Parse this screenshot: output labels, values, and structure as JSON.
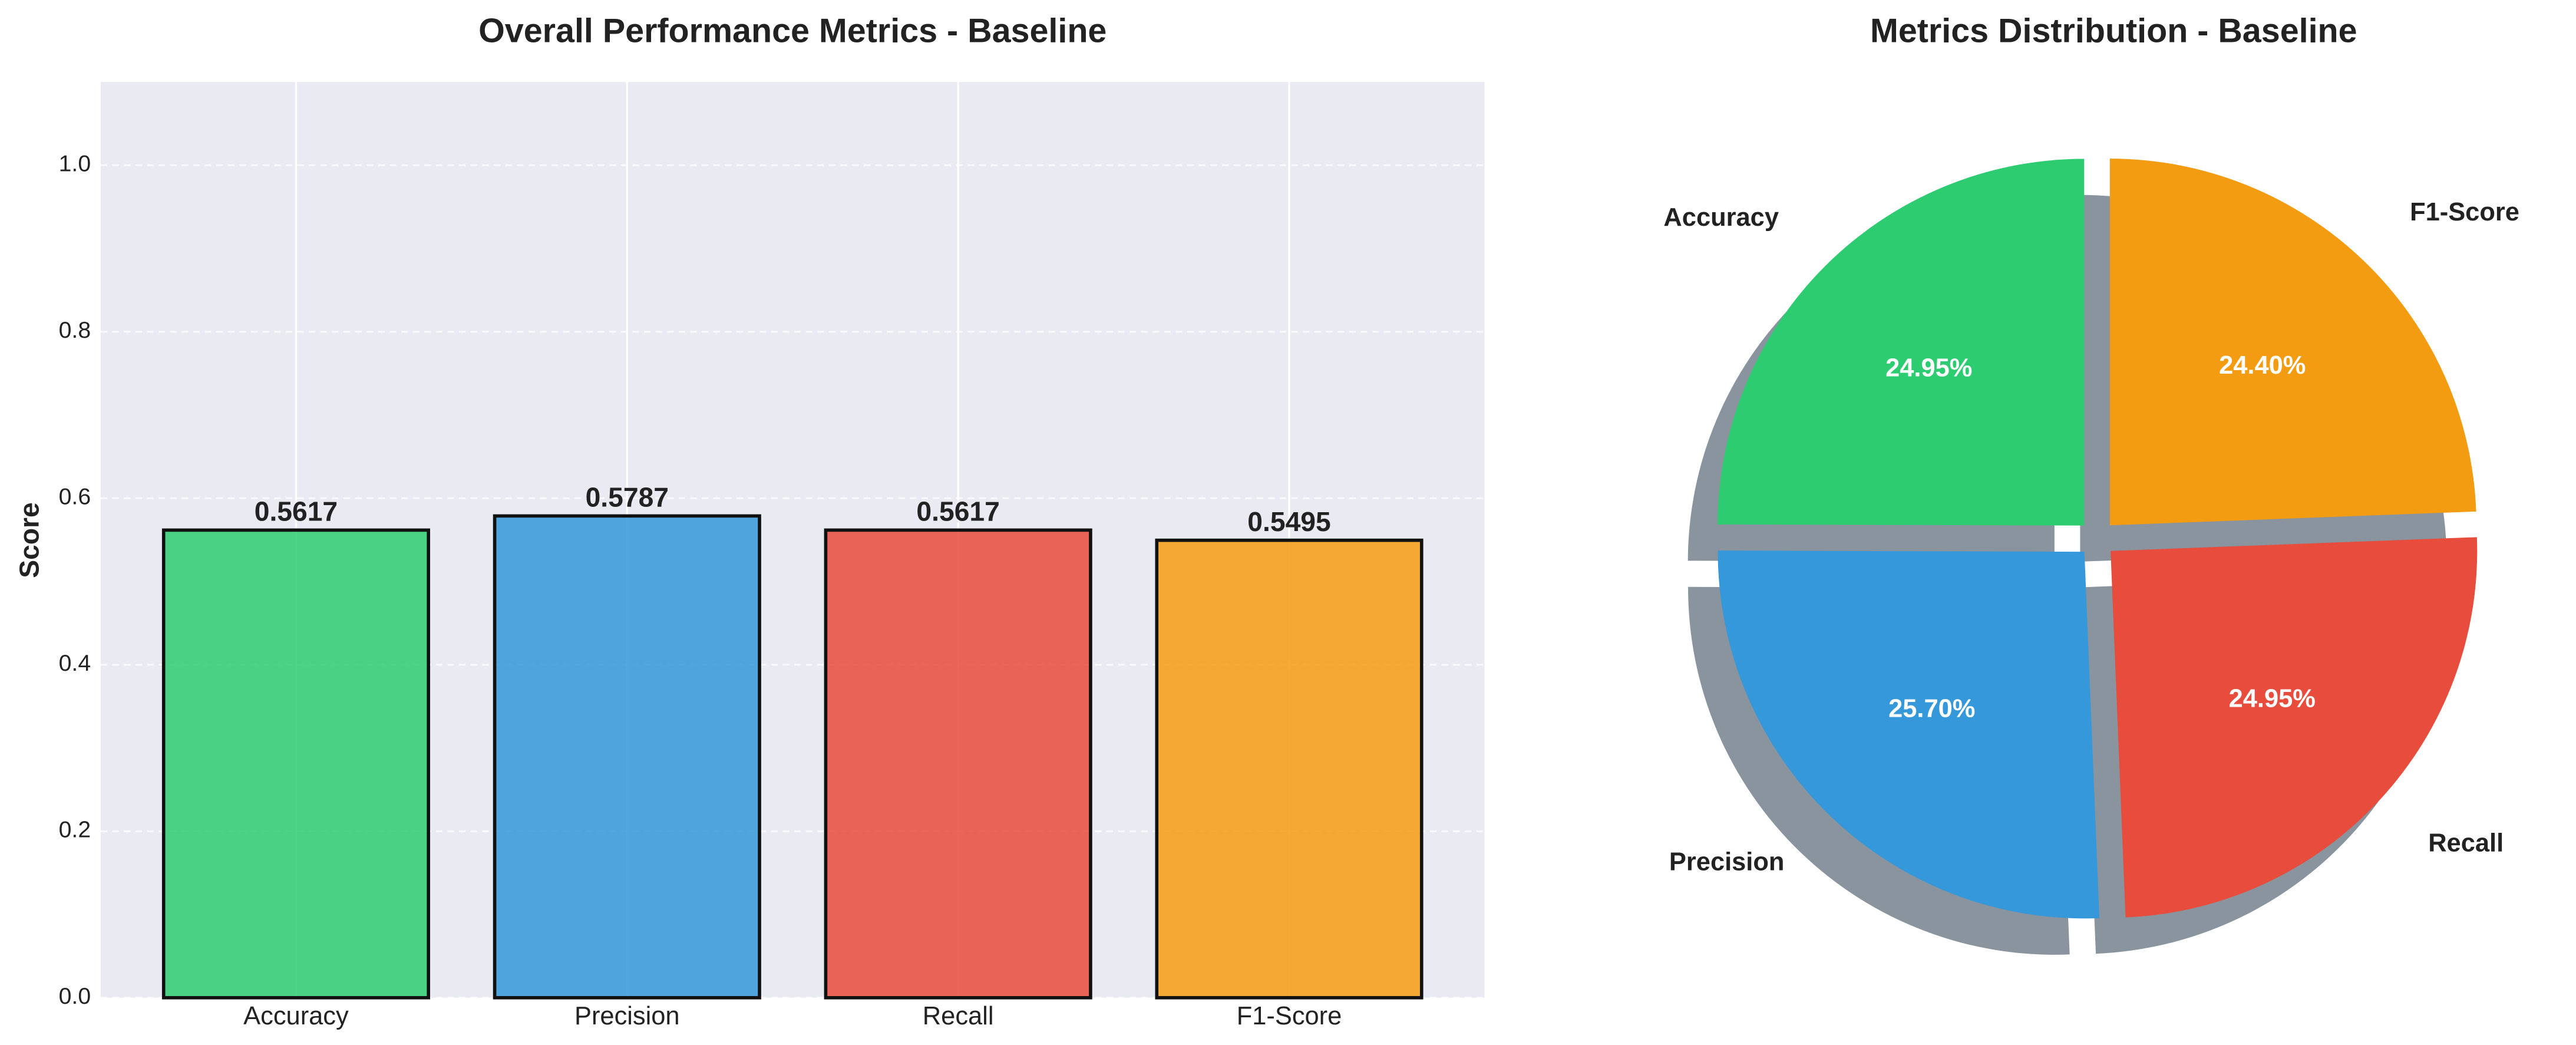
{
  "chart_data": [
    {
      "type": "bar",
      "title": "Overall Performance Metrics - Baseline",
      "y_label": "Score",
      "categories": [
        "Accuracy",
        "Precision",
        "Recall",
        "F1-Score"
      ],
      "values": [
        0.5617,
        0.5787,
        0.5617,
        0.5495
      ],
      "colors": [
        "#2ecc71",
        "#3498db",
        "#e74c3c",
        "#f39c12"
      ],
      "ylim": [
        0,
        1.1
      ],
      "yticks": [
        {
          "value": 0,
          "label": "0.0"
        },
        0.2,
        0.4,
        0.6,
        0.8,
        {
          "value": 1,
          "label": "1.0"
        }
      ],
      "grid": true
    },
    {
      "type": "pie",
      "title": "Metrics Distribution - Baseline",
      "categories": [
        "Accuracy",
        "Precision",
        "Recall",
        "F1-Score"
      ],
      "values": [
        24.95,
        25.7,
        24.95,
        24.4
      ],
      "value_labels": [
        "24.95%",
        "25.70%",
        "24.95%",
        "24.40%"
      ],
      "colors": [
        "#2ecc71",
        "#3498db",
        "#e74c3c",
        "#f39c12"
      ],
      "shadow": true
    }
  ]
}
